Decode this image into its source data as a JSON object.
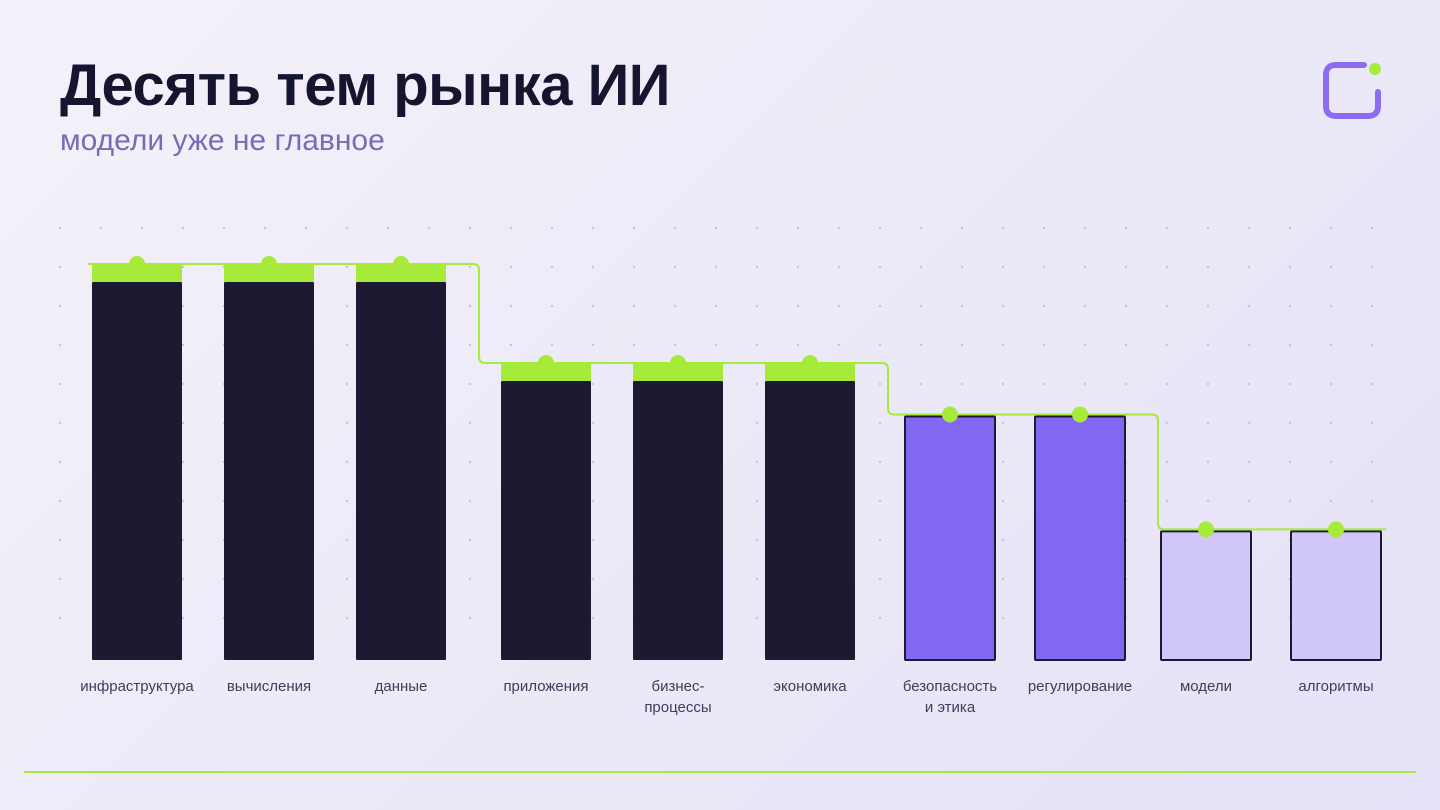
{
  "header": {
    "title": "Десять тем рынка ИИ",
    "subtitle": "модели уже не главное"
  },
  "logo": {
    "icon": "rounded-square-dot-icon",
    "stroke_color": "#8b6cf2",
    "dot_color": "#a6ea3a"
  },
  "colors": {
    "dark": "#1c1a33",
    "purple": "#8167f2",
    "lavender": "#d0c7f8",
    "accent": "#a6ea3a"
  },
  "chart_data": {
    "type": "bar",
    "title": "Десять тем рынка ИИ",
    "subtitle": "модели уже не главное",
    "xlabel": "",
    "ylabel": "",
    "grid": "dotted",
    "categories": [
      "инфраструктура",
      "вычисления",
      "данные",
      "приложения",
      "бизнес-процессы",
      "экономика",
      "безопасность и этика",
      "регулирование",
      "модели",
      "алгоритмы"
    ],
    "category_lines": [
      [
        "инфраструктура"
      ],
      [
        "вычисления"
      ],
      [
        "данные"
      ],
      [
        "приложения"
      ],
      [
        "бизнес-",
        "процессы"
      ],
      [
        "экономика"
      ],
      [
        "безопасность",
        "и этика"
      ],
      [
        "регулирование"
      ],
      [
        "модели"
      ],
      [
        "алгоритмы"
      ]
    ],
    "values": [
      100,
      100,
      100,
      75,
      75,
      75,
      62,
      62,
      33,
      33
    ],
    "tiers": [
      "dark",
      "dark",
      "dark",
      "dark",
      "dark",
      "dark",
      "purple",
      "purple",
      "lavender",
      "lavender"
    ],
    "ylim": [
      0,
      100
    ]
  }
}
